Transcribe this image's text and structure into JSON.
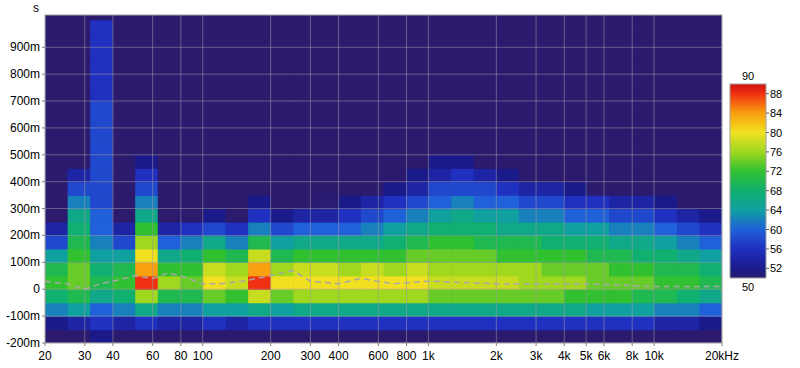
{
  "chart_data": {
    "type": "heatmap",
    "y_label": "s",
    "log": "x",
    "grid": true,
    "xlim": [
      20,
      20000
    ],
    "ylim": [
      -0.2,
      1.02
    ],
    "xticks": [
      20,
      30,
      40,
      60,
      80,
      100,
      200,
      300,
      400,
      600,
      800,
      {
        "value": 1000,
        "label": "1k"
      },
      {
        "value": 2000,
        "label": "2k"
      },
      {
        "value": 3000,
        "label": "3k"
      },
      {
        "value": 4000,
        "label": "4k"
      },
      {
        "value": 5000,
        "label": "5k"
      },
      {
        "value": 6000,
        "label": "6k"
      },
      {
        "value": 8000,
        "label": "8k"
      },
      {
        "value": 10000,
        "label": "10k"
      },
      {
        "value": 20000,
        "label": "20kHz"
      }
    ],
    "yticks": [
      {
        "value": -0.2,
        "label": "-200m"
      },
      {
        "value": -0.1,
        "label": "-100m"
      },
      0,
      {
        "value": 0.1,
        "label": "100m"
      },
      {
        "value": 0.2,
        "label": "200m"
      },
      {
        "value": 0.3,
        "label": "300m"
      },
      {
        "value": 0.4,
        "label": "400m"
      },
      {
        "value": 0.5,
        "label": "500m"
      },
      {
        "value": 0.6,
        "label": "600m"
      },
      {
        "value": 0.7,
        "label": "700m"
      },
      {
        "value": 0.8,
        "label": "800m"
      },
      {
        "value": 0.9,
        "label": "900m"
      }
    ],
    "x_edges": [
      20,
      25.2,
      31.7,
      39.9,
      50.2,
      63.2,
      79.6,
      100.2,
      126.2,
      158.9,
      200,
      251.8,
      317,
      399,
      502,
      632,
      796,
      1002,
      1262,
      1589,
      2000,
      2518,
      3170,
      3991,
      5024,
      6325,
      7962,
      10024,
      12619,
      15887,
      20000
    ],
    "y_edges": [
      -0.2,
      -0.15,
      -0.1,
      -0.05,
      0,
      0.05,
      0.1,
      0.15,
      0.2,
      0.25,
      0.3,
      0.35,
      0.4,
      0.45,
      0.5,
      0.55,
      0.6,
      0.65,
      0.7,
      0.75,
      0.8,
      0.85,
      0.9,
      0.95,
      1.0
    ],
    "cells": [
      [
        40,
        52,
        62,
        68,
        72,
        70,
        64,
        58,
        54,
        40,
        40,
        40,
        40,
        40,
        40,
        40,
        40,
        40,
        40,
        40,
        40,
        40,
        40,
        40
      ],
      [
        40,
        54,
        64,
        70,
        74,
        74,
        72,
        70,
        68,
        66,
        62,
        58,
        54,
        40,
        40,
        40,
        40,
        40,
        40,
        40,
        40,
        40,
        40,
        40
      ],
      [
        52,
        56,
        60,
        66,
        70,
        68,
        64,
        62,
        60,
        60,
        58,
        58,
        58,
        58,
        58,
        58,
        58,
        58,
        56,
        56,
        56,
        56,
        56,
        56
      ],
      [
        40,
        54,
        62,
        68,
        72,
        70,
        64,
        58,
        54,
        40,
        40,
        40,
        40,
        40,
        40,
        40,
        40,
        40,
        40,
        40,
        40,
        40,
        40,
        40
      ],
      [
        40,
        56,
        66,
        76,
        88,
        84,
        80,
        76,
        72,
        66,
        62,
        58,
        56,
        52,
        40,
        40,
        40,
        40,
        40,
        40,
        40,
        40,
        40,
        40
      ],
      [
        40,
        54,
        62,
        70,
        76,
        72,
        66,
        60,
        54,
        40,
        40,
        40,
        40,
        40,
        40,
        40,
        40,
        40,
        40,
        40,
        40,
        40,
        40,
        40
      ],
      [
        40,
        54,
        62,
        70,
        74,
        72,
        68,
        62,
        56,
        40,
        40,
        40,
        40,
        40,
        40,
        40,
        40,
        40,
        40,
        40,
        40,
        40,
        40,
        40
      ],
      [
        40,
        56,
        64,
        74,
        80,
        78,
        72,
        66,
        58,
        52,
        40,
        40,
        40,
        40,
        40,
        40,
        40,
        40,
        40,
        40,
        40,
        40,
        40,
        40
      ],
      [
        40,
        54,
        64,
        72,
        78,
        76,
        70,
        62,
        56,
        40,
        40,
        40,
        40,
        40,
        40,
        40,
        40,
        40,
        40,
        40,
        40,
        40,
        40,
        40
      ],
      [
        40,
        56,
        66,
        78,
        88,
        84,
        78,
        70,
        62,
        56,
        52,
        40,
        40,
        40,
        40,
        40,
        40,
        40,
        40,
        40,
        40,
        40,
        40,
        40
      ],
      [
        40,
        56,
        64,
        74,
        80,
        76,
        70,
        64,
        58,
        52,
        40,
        40,
        40,
        40,
        40,
        40,
        40,
        40,
        40,
        40,
        40,
        40,
        40,
        40
      ],
      [
        40,
        56,
        66,
        76,
        80,
        78,
        72,
        66,
        60,
        54,
        40,
        40,
        40,
        40,
        40,
        40,
        40,
        40,
        40,
        40,
        40,
        40,
        40,
        40
      ],
      [
        40,
        56,
        66,
        76,
        80,
        78,
        72,
        66,
        60,
        54,
        50,
        40,
        40,
        40,
        40,
        40,
        40,
        40,
        40,
        40,
        40,
        40,
        40,
        40
      ],
      [
        40,
        56,
        66,
        76,
        80,
        76,
        72,
        66,
        60,
        56,
        52,
        40,
        40,
        40,
        40,
        40,
        40,
        40,
        40,
        40,
        40,
        40,
        40,
        40
      ],
      [
        40,
        56,
        66,
        76,
        80,
        78,
        72,
        66,
        62,
        58,
        54,
        40,
        40,
        40,
        40,
        40,
        40,
        40,
        40,
        40,
        40,
        40,
        40,
        40
      ],
      [
        40,
        56,
        66,
        76,
        80,
        76,
        72,
        68,
        64,
        60,
        56,
        52,
        40,
        40,
        40,
        40,
        40,
        40,
        40,
        40,
        40,
        40,
        40,
        40
      ],
      [
        40,
        56,
        66,
        76,
        80,
        78,
        74,
        70,
        66,
        62,
        58,
        54,
        52,
        40,
        40,
        40,
        40,
        40,
        40,
        40,
        40,
        40,
        40,
        40
      ],
      [
        40,
        56,
        66,
        74,
        78,
        76,
        74,
        72,
        68,
        64,
        60,
        58,
        54,
        52,
        40,
        40,
        40,
        40,
        40,
        40,
        40,
        40,
        40,
        40
      ],
      [
        40,
        56,
        66,
        74,
        78,
        76,
        74,
        72,
        68,
        66,
        62,
        58,
        56,
        52,
        40,
        40,
        40,
        40,
        40,
        40,
        40,
        40,
        40,
        40
      ],
      [
        40,
        56,
        66,
        74,
        78,
        76,
        74,
        70,
        68,
        64,
        60,
        58,
        54,
        40,
        40,
        40,
        40,
        40,
        40,
        40,
        40,
        40,
        40,
        40
      ],
      [
        40,
        56,
        66,
        74,
        78,
        76,
        72,
        70,
        66,
        64,
        60,
        56,
        52,
        40,
        40,
        40,
        40,
        40,
        40,
        40,
        40,
        40,
        40,
        40
      ],
      [
        40,
        56,
        66,
        74,
        76,
        76,
        72,
        70,
        66,
        62,
        58,
        54,
        40,
        40,
        40,
        40,
        40,
        40,
        40,
        40,
        40,
        40,
        40,
        40
      ],
      [
        40,
        56,
        66,
        74,
        76,
        74,
        72,
        68,
        66,
        62,
        58,
        54,
        40,
        40,
        40,
        40,
        40,
        40,
        40,
        40,
        40,
        40,
        40,
        40
      ],
      [
        40,
        56,
        66,
        72,
        76,
        74,
        72,
        68,
        64,
        60,
        56,
        52,
        40,
        40,
        40,
        40,
        40,
        40,
        40,
        40,
        40,
        40,
        40,
        40
      ],
      [
        40,
        56,
        64,
        72,
        74,
        74,
        70,
        68,
        64,
        60,
        56,
        40,
        40,
        40,
        40,
        40,
        40,
        40,
        40,
        40,
        40,
        40,
        40,
        40
      ],
      [
        40,
        56,
        64,
        72,
        74,
        72,
        70,
        66,
        62,
        58,
        54,
        40,
        40,
        40,
        40,
        40,
        40,
        40,
        40,
        40,
        40,
        40,
        40,
        40
      ],
      [
        40,
        56,
        64,
        70,
        74,
        72,
        68,
        66,
        62,
        58,
        54,
        40,
        40,
        40,
        40,
        40,
        40,
        40,
        40,
        40,
        40,
        40,
        40,
        40
      ],
      [
        40,
        54,
        62,
        70,
        72,
        70,
        68,
        64,
        60,
        56,
        52,
        40,
        40,
        40,
        40,
        40,
        40,
        40,
        40,
        40,
        40,
        40,
        40,
        40
      ],
      [
        40,
        54,
        62,
        68,
        72,
        70,
        66,
        62,
        58,
        54,
        40,
        40,
        40,
        40,
        40,
        40,
        40,
        40,
        40,
        40,
        40,
        40,
        40,
        40
      ],
      [
        40,
        52,
        60,
        66,
        70,
        68,
        64,
        60,
        56,
        52,
        40,
        40,
        40,
        40,
        40,
        40,
        40,
        40,
        40,
        40,
        40,
        40,
        40,
        40
      ]
    ],
    "colorbar_lim": [
      50,
      90
    ],
    "colorbar_ticks": [
      90,
      88,
      84,
      80,
      76,
      72,
      68,
      64,
      60,
      56,
      52,
      50
    ],
    "series": [
      {
        "color": "#a8a8a8",
        "line_style": "dashed",
        "x": [
          20,
          25,
          30,
          35,
          40,
          50,
          60,
          70,
          80,
          100,
          120,
          150,
          200,
          250,
          300,
          400,
          500,
          700,
          1000,
          2000,
          5000,
          10000,
          20000
        ],
        "values": [
          0.03,
          0.02,
          0.0,
          0.02,
          0.03,
          0.05,
          0.04,
          0.06,
          0.05,
          0.02,
          0.02,
          0.03,
          0.05,
          0.07,
          0.03,
          0.02,
          0.04,
          0.02,
          0.03,
          0.02,
          0.02,
          0.01,
          0.01
        ]
      }
    ]
  }
}
